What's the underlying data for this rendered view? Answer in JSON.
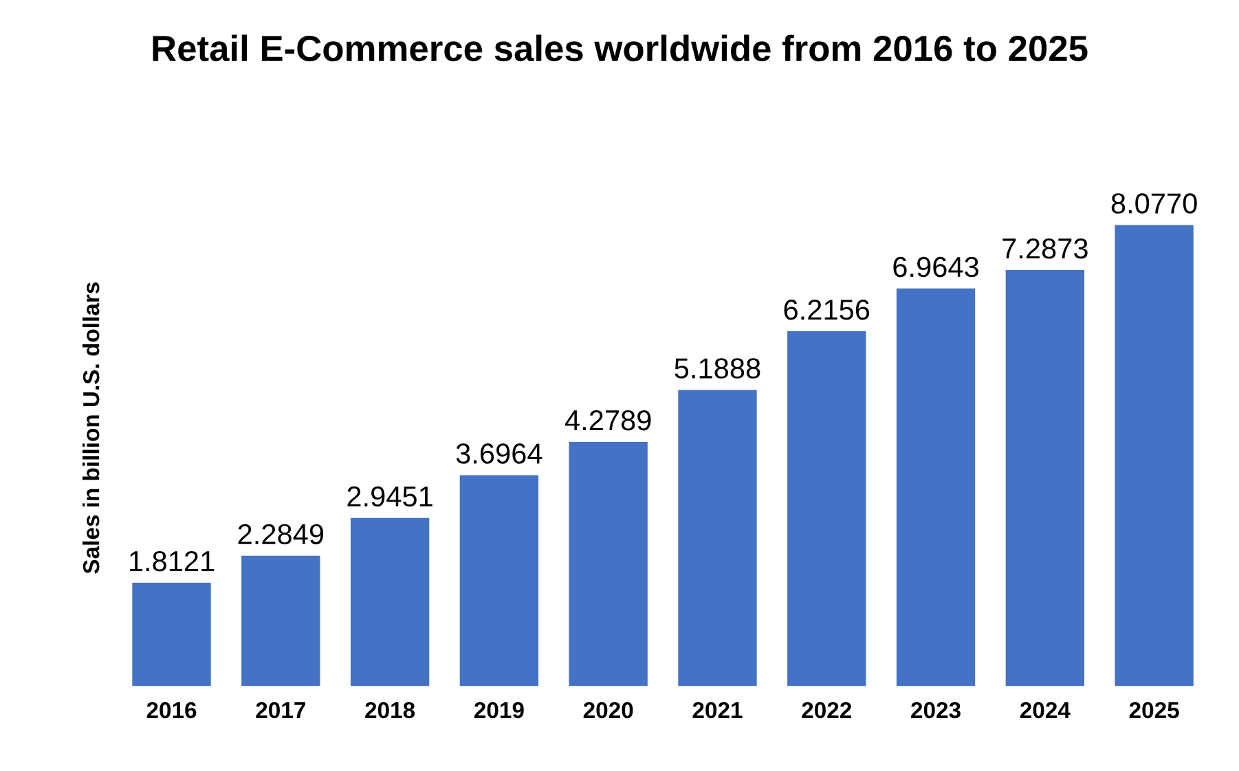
{
  "chart_data": {
    "type": "bar",
    "title": "Retail E-Commerce sales worldwide from 2016 to 2025",
    "ylabel": "Sales in billion U.S. dollars",
    "categories": [
      "2016",
      "2017",
      "2018",
      "2019",
      "2020",
      "2021",
      "2022",
      "2023",
      "2024",
      "2025"
    ],
    "values": [
      1.8121,
      2.2849,
      2.9451,
      3.6964,
      4.2789,
      5.1888,
      6.2156,
      6.9643,
      7.2873,
      8.077
    ],
    "value_labels": [
      "1.8121",
      "2.2849",
      "2.9451",
      "3.6964",
      "4.2789",
      "5.1888",
      "6.2156",
      "6.9643",
      "7.2873",
      "8.0770"
    ],
    "color": "#4472c4",
    "grid": false,
    "legend": false
  }
}
